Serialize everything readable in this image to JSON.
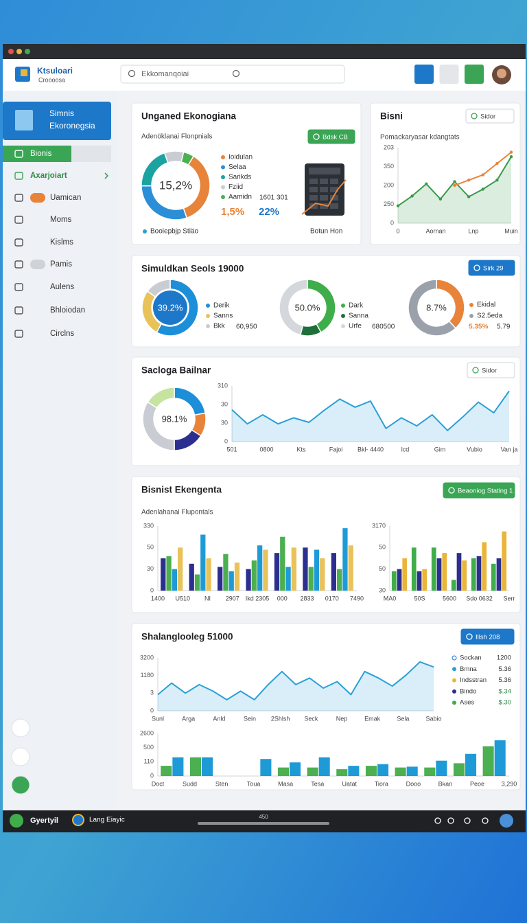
{
  "header": {
    "app_name": "Ktsuloari",
    "app_subtitle": "Croooosa",
    "search_placeholder": "Ekkomanqoiai"
  },
  "sidebar": {
    "banner_title": "Simnis",
    "banner_subtitle": "Ekoronegsia",
    "menu": [
      "Bionis",
      "Axarjoiart",
      "Uamican",
      "Moms",
      "Kislms",
      "Pamis",
      "Aulens",
      "Bhloiodan",
      "Circlns"
    ]
  },
  "cards": [
    {
      "title": "Unganed Ekonogiana",
      "subtitle": "Adenöklanai Flonpnials",
      "button": "Bdsk CB",
      "stats": [
        "1601 301",
        "1,5%",
        "22%"
      ],
      "footer": [
        "Booiepbjp Stiäo",
        "Botun Hon"
      ]
    },
    {
      "title": "Bisni",
      "button": "Sidor",
      "subtitle": "Pomackaryasar kdangtats"
    },
    {
      "title": "Simuldkan Seols 19000",
      "button": "Sirk 29",
      "notes": [
        "60,950",
        "680500",
        "5.35%",
        "5.79"
      ]
    },
    {
      "title": "Sacloga Bailnar",
      "button": "Sidor"
    },
    {
      "title": "Bisnist Ekengenta",
      "button": "Beaoniog Stating 1",
      "subtitle": "Adenlahanai Flupontals"
    },
    {
      "title": "Shalanglooleg 51000",
      "button": "Illsh 208",
      "legend": [
        {
          "name": "Sockan",
          "value": "1200",
          "color": "#1d78c9"
        },
        {
          "name": "Bmna",
          "value": "5.36",
          "color": "#2a9fd6"
        },
        {
          "name": "Indsstran",
          "value": "5.36",
          "color": "#e9b53a"
        },
        {
          "name": "Bindo",
          "value": "$.34",
          "color": "#2c2f8f"
        },
        {
          "name": "Ases",
          "value": "$.30",
          "color": "#3fae4a"
        }
      ]
    }
  ],
  "chart_data": [
    {
      "type": "pie",
      "center_label": "15,2%",
      "categories": [
        "Ioidulan",
        "Selaa",
        "Sarikds",
        "Fziid",
        "Aamidn"
      ],
      "values": [
        36,
        30,
        20,
        9,
        5
      ],
      "colors": [
        "#e8833a",
        "#2a8fd6",
        "#1aa3a0",
        "#c9cdd3",
        "#4caf50"
      ]
    },
    {
      "type": "line",
      "y_labels": [
        "203",
        "350",
        "200",
        "250",
        "0"
      ],
      "ylim": [
        0,
        100
      ],
      "x_labels": [
        "0",
        "Aornan",
        "Lnp",
        "Muin"
      ],
      "series": [
        {
          "color": "#3a9a4a",
          "values": [
            23,
            36,
            52,
            32,
            55,
            35,
            45,
            57,
            88
          ]
        },
        {
          "color": "#e8833a",
          "values": [
            null,
            null,
            null,
            null,
            50,
            57,
            64,
            79,
            94
          ]
        }
      ]
    },
    {
      "type": "pie",
      "center_label": "39.2%",
      "categories": [
        "Derik",
        "Sanns",
        "Bkk"
      ],
      "values": [
        58,
        27,
        15
      ],
      "colors": [
        "#1d8fd8",
        "#e9c25a",
        "#c9cdd3"
      ]
    },
    {
      "type": "pie",
      "center_label": "50.0%",
      "categories": [
        "Dark",
        "Sanna",
        "Urfe"
      ],
      "values": [
        42,
        12,
        46
      ],
      "colors": [
        "#3fae4a",
        "#1f6f3b",
        "#d4d7dc"
      ]
    },
    {
      "type": "pie",
      "center_label": "8.7%",
      "categories": [
        "Ekidal",
        "S2.5eda"
      ],
      "values": [
        38,
        62
      ],
      "colors": [
        "#e8833a",
        "#9aa1aa"
      ]
    },
    {
      "type": "pie",
      "center_label": "98.1%",
      "categories": [
        null,
        null,
        null,
        null,
        null
      ],
      "values": [
        22,
        12,
        16,
        34,
        16
      ],
      "colors": [
        "#1d8fd8",
        "#e8833a",
        "#2c2f8f",
        "#c9cdd3",
        "#c6e3a0"
      ]
    },
    {
      "type": "line",
      "y_labels": [
        "310",
        "30",
        "30",
        "0"
      ],
      "ylim": [
        0,
        110
      ],
      "x_labels": [
        "501",
        "0800",
        "Kts",
        "Fajoi",
        "Bkl- 4440",
        "lcd",
        "Gim",
        "Vubio",
        "Van ja"
      ],
      "series": [
        {
          "color": "#2a9fd6",
          "values": [
            63,
            35,
            53,
            35,
            47,
            38,
            62,
            84,
            68,
            80,
            26,
            47,
            31,
            53,
            22,
            49,
            78,
            57,
            100
          ]
        }
      ]
    },
    {
      "type": "bar",
      "y_labels": [
        "330",
        "50",
        "30",
        "0"
      ],
      "ylim": [
        0,
        60
      ],
      "x_labels": [
        "1400",
        "U510",
        "NI",
        "2907",
        "Ikd 2305",
        "000",
        "2833",
        "0170",
        "7490"
      ],
      "series": [
        {
          "color": "#2c2f8f",
          "values": [
            30,
            25,
            22,
            20,
            35,
            40,
            35
          ]
        },
        {
          "color": "#4caf50",
          "values": [
            32,
            15,
            34,
            28,
            50,
            22,
            20
          ]
        },
        {
          "color": "#1e9bd7",
          "values": [
            20,
            52,
            18,
            42,
            22,
            38,
            58
          ]
        },
        {
          "color": "#e9c25a",
          "values": [
            40,
            30,
            26,
            38,
            40,
            30,
            42
          ]
        }
      ]
    },
    {
      "type": "bar",
      "y_labels": [
        "3170",
        "50",
        "50",
        "30"
      ],
      "ylim": [
        0,
        60
      ],
      "x_labels": [
        "MA0",
        "50S",
        "5600",
        "Sdo 0632",
        "Serr"
      ],
      "series": [
        {
          "color": "#3fae4a",
          "values": [
            18,
            40,
            40,
            10,
            30,
            25
          ]
        },
        {
          "color": "#2c2f8f",
          "values": [
            20,
            18,
            30,
            35,
            32,
            30
          ]
        },
        {
          "color": "#e9b53a",
          "values": [
            30,
            20,
            35,
            28,
            45,
            55
          ]
        }
      ]
    },
    {
      "type": "line",
      "y_labels": [
        "3200",
        "1180",
        "3",
        "0"
      ],
      "ylim": [
        0,
        105
      ],
      "x_labels": [
        "Sunl",
        "Arga",
        "Anld",
        "Sein",
        "2Shlsh",
        "Seck",
        "Nep",
        "Emak",
        "Sela",
        "Sabio"
      ],
      "series": [
        {
          "color": "#2a9fd6",
          "values": [
            32,
            55,
            35,
            52,
            39,
            22,
            39,
            22,
            52,
            78,
            52,
            65,
            45,
            58,
            32,
            78,
            65,
            49,
            71,
            97,
            87
          ]
        }
      ]
    },
    {
      "type": "bar",
      "y_labels": [
        "2600",
        "500",
        "110",
        "0"
      ],
      "ylim": [
        0,
        50
      ],
      "x_labels": [
        "Doct",
        "Sudd",
        "Sten",
        "Toua",
        "Masa",
        "Tesa",
        "Uatat",
        "Tiora",
        "Dooo",
        "Bkan",
        "Peoe",
        "3,290"
      ],
      "series": [
        {
          "color": "#4caf50",
          "values": [
            12,
            22,
            0,
            0,
            10,
            10,
            8,
            12,
            10,
            10,
            15,
            35
          ]
        },
        {
          "color": "#1e9bd7",
          "values": [
            22,
            22,
            0,
            20,
            16,
            22,
            12,
            14,
            11,
            18,
            26,
            42
          ]
        }
      ]
    }
  ],
  "taskbar": {
    "items": [
      "Gyertyil",
      "Lang Eiayic"
    ],
    "center": "450"
  }
}
